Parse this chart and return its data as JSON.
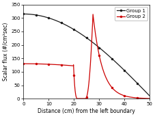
{
  "title": "",
  "xlabel": "Distance (cm) from the left boundary",
  "ylabel": "Scalar flux (#/cm²sec)",
  "xlim": [
    0,
    50
  ],
  "ylim": [
    0,
    350
  ],
  "xticks": [
    0,
    10,
    20,
    30,
    40,
    50
  ],
  "yticks": [
    0,
    50,
    100,
    150,
    200,
    250,
    300,
    350
  ],
  "group1_color": "#1a1a1a",
  "group2_color": "#cc0000",
  "legend_labels": [
    "Group 1",
    "Group 2"
  ],
  "figsize": [
    2.28,
    1.71
  ],
  "dpi": 100
}
